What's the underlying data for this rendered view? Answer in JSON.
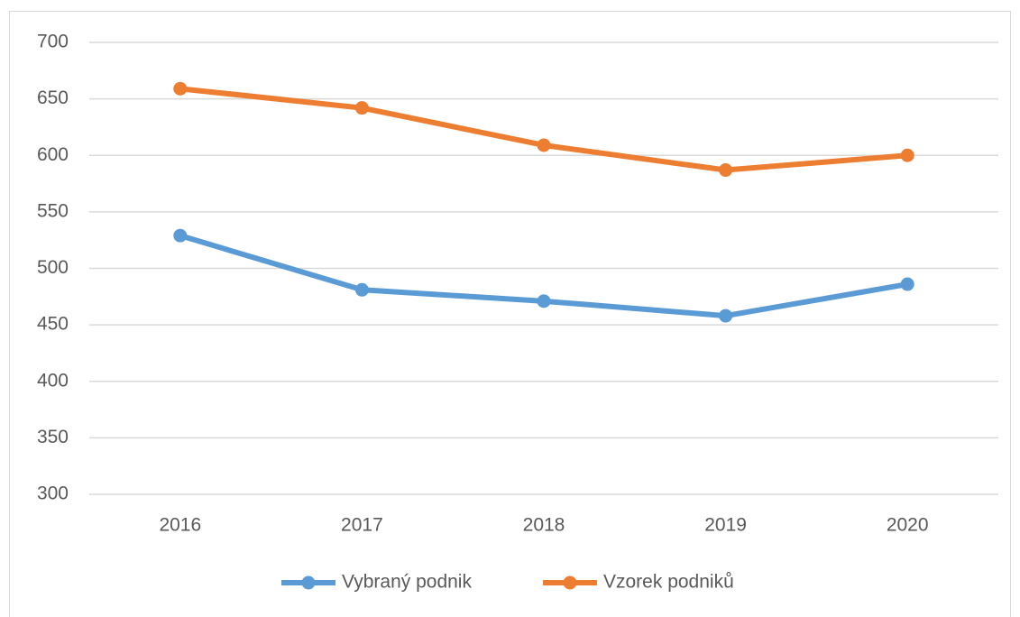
{
  "chart_data": {
    "type": "line",
    "categories": [
      "2016",
      "2017",
      "2018",
      "2019",
      "2020"
    ],
    "series": [
      {
        "name": "Vybraný podnik",
        "color": "#5b9bd5",
        "values": [
          529,
          481,
          471,
          458,
          486
        ]
      },
      {
        "name": "Vzorek podniků",
        "color": "#ed7d31",
        "values": [
          659,
          642,
          609,
          587,
          600
        ]
      }
    ],
    "ylim": [
      300,
      700
    ],
    "yticks": [
      300,
      350,
      400,
      450,
      500,
      550,
      600,
      650,
      700
    ],
    "grid": true,
    "legend": "bottom"
  }
}
